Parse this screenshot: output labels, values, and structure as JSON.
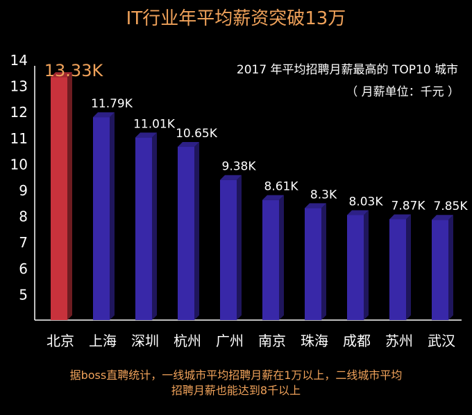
{
  "page_title": "IT行业年平均薪资突破13万",
  "notes": {
    "line1": "据boss直聘统计，一线城市平均招聘月薪在1万以上，二线城市平均",
    "line2": "招聘月薪也能达到8千以上"
  },
  "colors": {
    "background": "#000000",
    "highlight_bar": "#c8323c",
    "normal_bar": "#3828a8",
    "title_accent": "#f0a25a",
    "text": "#ffffff"
  },
  "chart_data": {
    "type": "bar",
    "title": "2017 年平均招聘月薪最高的 TOP10 城市",
    "subtitle": "（ 月薪单位：千元 ）",
    "categories": [
      "北京",
      "上海",
      "深圳",
      "杭州",
      "广州",
      "南京",
      "珠海",
      "成都",
      "苏州",
      "武汉"
    ],
    "values": [
      13.33,
      11.79,
      11.01,
      10.65,
      9.38,
      8.61,
      8.3,
      8.03,
      7.87,
      7.85
    ],
    "labels": [
      "13.33K",
      "11.79K",
      "11.01K",
      "10.65K",
      "9.38K",
      "8.61K",
      "8.3K",
      "8.03K",
      "7.87K",
      "7.85K"
    ],
    "highlight_index": 0,
    "yticks": [
      5,
      6,
      7,
      8,
      9,
      10,
      11,
      12,
      13,
      14
    ],
    "ylim": [
      4,
      14
    ],
    "xlabel": "",
    "ylabel": "",
    "grid": false,
    "style": "3d-bar"
  }
}
